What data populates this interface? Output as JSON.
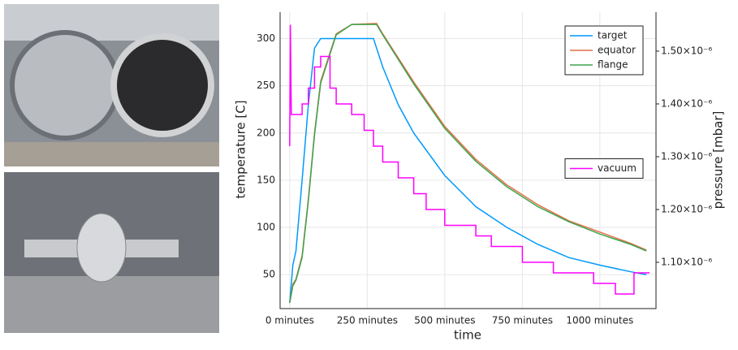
{
  "chart_data": {
    "type": "line",
    "xlabel": "time",
    "ylabel": "temperature [C]",
    "y2label": "pressure [mbar]",
    "xlim": [
      -31,
      1181
    ],
    "ylim": [
      14,
      328
    ],
    "y2lim": [
      1.0123e-06,
      1.5738e-06
    ],
    "xticks": [
      {
        "value": 0,
        "label": "0 minutes"
      },
      {
        "value": 250,
        "label": "250 minutes"
      },
      {
        "value": 500,
        "label": "500 minutes"
      },
      {
        "value": 750,
        "label": "750 minutes"
      },
      {
        "value": 1000,
        "label": "1000 minutes"
      }
    ],
    "yticks": [
      50,
      100,
      150,
      200,
      250,
      300
    ],
    "y2ticks": [
      {
        "value": 1.1e-06,
        "label": "1.10×10⁻⁶"
      },
      {
        "value": 1.2e-06,
        "label": "1.20×10⁻⁶"
      },
      {
        "value": 1.3e-06,
        "label": "1.30×10⁻⁶"
      },
      {
        "value": 1.4e-06,
        "label": "1.40×10⁻⁶"
      },
      {
        "value": 1.5e-06,
        "label": "1.50×10⁻⁶"
      }
    ],
    "grid": true,
    "legend": "top right",
    "legend_y2": "center right",
    "series": [
      {
        "name": "target",
        "color": "#009AFA",
        "x": [
          0,
          10,
          20,
          40,
          60,
          80,
          100,
          150,
          200,
          270,
          300,
          350,
          400,
          500,
          600,
          700,
          800,
          900,
          1000,
          1100,
          1150
        ],
        "values": [
          20,
          60,
          75,
          150,
          230,
          290,
          300,
          300,
          300,
          300,
          270,
          230,
          200,
          155,
          122,
          100,
          82,
          68,
          60,
          53,
          50
        ]
      },
      {
        "name": "equator",
        "color": "#E36F47",
        "x": [
          0,
          10,
          20,
          40,
          60,
          80,
          100,
          150,
          200,
          280,
          300,
          400,
          500,
          600,
          700,
          800,
          900,
          1000,
          1100,
          1150
        ],
        "values": [
          20,
          40,
          45,
          70,
          130,
          200,
          255,
          305,
          315,
          316,
          305,
          254,
          207,
          172,
          145,
          124,
          107,
          95,
          83,
          76
        ]
      },
      {
        "name": "flange",
        "color": "#3EA44E",
        "x": [
          0,
          10,
          20,
          40,
          60,
          80,
          100,
          150,
          200,
          280,
          300,
          400,
          500,
          600,
          700,
          800,
          900,
          1000,
          1100,
          1150
        ],
        "values": [
          20,
          38,
          44,
          68,
          128,
          198,
          253,
          304,
          315,
          315,
          304,
          252,
          205,
          170,
          143,
          122,
          106,
          93,
          82,
          75
        ]
      },
      {
        "name": "vacuum",
        "color": "#FF00FF",
        "axis": "y2",
        "x": [
          0,
          2,
          5,
          40,
          40,
          60,
          60,
          80,
          80,
          100,
          100,
          130,
          130,
          150,
          150,
          200,
          200,
          240,
          240,
          270,
          270,
          300,
          300,
          350,
          350,
          400,
          400,
          440,
          440,
          500,
          500,
          600,
          600,
          650,
          650,
          750,
          750,
          850,
          850,
          980,
          980,
          1050,
          1050,
          1110,
          1110,
          1160
        ],
        "values": [
          1.32e-06,
          1.55e-06,
          1.38e-06,
          1.38e-06,
          1.4e-06,
          1.4e-06,
          1.43e-06,
          1.43e-06,
          1.47e-06,
          1.47e-06,
          1.49e-06,
          1.49e-06,
          1.43e-06,
          1.43e-06,
          1.4e-06,
          1.4e-06,
          1.38e-06,
          1.38e-06,
          1.35e-06,
          1.35e-06,
          1.32e-06,
          1.32e-06,
          1.29e-06,
          1.29e-06,
          1.26e-06,
          1.26e-06,
          1.23e-06,
          1.23e-06,
          1.2e-06,
          1.2e-06,
          1.17e-06,
          1.17e-06,
          1.15e-06,
          1.15e-06,
          1.13e-06,
          1.13e-06,
          1.1e-06,
          1.1e-06,
          1.08e-06,
          1.08e-06,
          1.06e-06,
          1.06e-06,
          1.04e-06,
          1.04e-06,
          1.08e-06,
          1.08e-06
        ]
      }
    ]
  }
}
